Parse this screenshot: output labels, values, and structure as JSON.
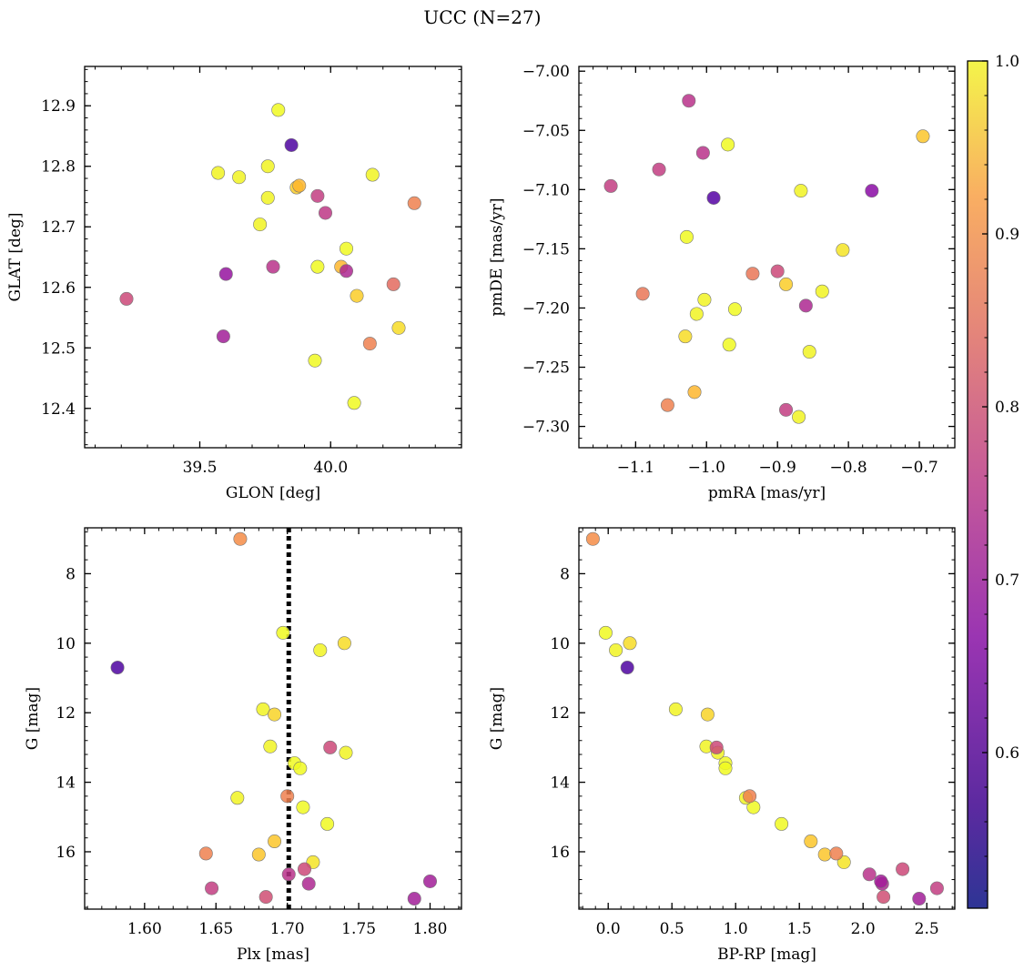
{
  "figure": {
    "title": "UCC (N=27)"
  },
  "colorbar": {
    "ticks": [
      1.0,
      0.9,
      0.8,
      0.7,
      0.6
    ],
    "tick_labels": [
      "1.0",
      "0.9",
      "0.8",
      "0.7",
      "0.6"
    ],
    "range": [
      0.51,
      1.0
    ],
    "colormap": "plasma"
  },
  "chart_data": [
    {
      "type": "scatter",
      "xlabel": "GLON [deg]",
      "ylabel": "GLAT [deg]",
      "xlim": [
        39.06,
        40.5
      ],
      "ylim": [
        12.335,
        12.965
      ],
      "xticks": [
        39.5,
        40.0
      ],
      "xtick_labels": [
        "39.5",
        "40.0"
      ],
      "yticks": [
        12.4,
        12.5,
        12.6,
        12.7,
        12.8,
        12.9
      ],
      "ytick_labels": [
        "12.4",
        "12.5",
        "12.6",
        "12.7",
        "12.8",
        "12.9"
      ],
      "points": [
        {
          "x": 39.22,
          "y": 12.581,
          "c": 0.72
        },
        {
          "x": 39.8,
          "y": 12.893,
          "c": 0.99
        },
        {
          "x": 39.85,
          "y": 12.835,
          "c": 0.52
        },
        {
          "x": 39.57,
          "y": 12.789,
          "c": 0.98
        },
        {
          "x": 39.65,
          "y": 12.782,
          "c": 0.98
        },
        {
          "x": 39.76,
          "y": 12.8,
          "c": 0.98
        },
        {
          "x": 39.88,
          "y": 12.768,
          "c": 0.9
        },
        {
          "x": 39.87,
          "y": 12.765,
          "c": 0.93
        },
        {
          "x": 39.95,
          "y": 12.751,
          "c": 0.7
        },
        {
          "x": 39.98,
          "y": 12.723,
          "c": 0.69
        },
        {
          "x": 40.16,
          "y": 12.786,
          "c": 0.98
        },
        {
          "x": 40.32,
          "y": 12.739,
          "c": 0.82
        },
        {
          "x": 39.76,
          "y": 12.748,
          "c": 0.98
        },
        {
          "x": 39.73,
          "y": 12.704,
          "c": 0.98
        },
        {
          "x": 40.06,
          "y": 12.664,
          "c": 0.99
        },
        {
          "x": 39.6,
          "y": 12.622,
          "c": 0.62
        },
        {
          "x": 39.78,
          "y": 12.634,
          "c": 0.68
        },
        {
          "x": 39.95,
          "y": 12.634,
          "c": 0.99
        },
        {
          "x": 40.04,
          "y": 12.634,
          "c": 0.9
        },
        {
          "x": 40.06,
          "y": 12.627,
          "c": 0.66
        },
        {
          "x": 40.1,
          "y": 12.586,
          "c": 0.93
        },
        {
          "x": 40.24,
          "y": 12.605,
          "c": 0.78
        },
        {
          "x": 39.59,
          "y": 12.519,
          "c": 0.64
        },
        {
          "x": 40.15,
          "y": 12.507,
          "c": 0.82
        },
        {
          "x": 40.26,
          "y": 12.533,
          "c": 0.95
        },
        {
          "x": 39.94,
          "y": 12.479,
          "c": 0.99
        },
        {
          "x": 40.09,
          "y": 12.409,
          "c": 0.99
        }
      ]
    },
    {
      "type": "scatter",
      "xlabel": "pmRA [mas/yr]",
      "ylabel": "pmDE [mas/yr]",
      "xlim": [
        -1.18,
        -0.65
      ],
      "ylim": [
        -7.318,
        -6.996
      ],
      "xticks": [
        -1.1,
        -1.0,
        -0.9,
        -0.8,
        -0.7
      ],
      "xtick_labels": [
        "−1.1",
        "−1.0",
        "−0.9",
        "−0.8",
        "−0.7"
      ],
      "yticks": [
        -7.3,
        -7.25,
        -7.2,
        -7.15,
        -7.1,
        -7.05,
        -7.0
      ],
      "ytick_labels": [
        "−7.30",
        "−7.25",
        "−7.20",
        "−7.15",
        "−7.10",
        "−7.05",
        "−7.00"
      ],
      "points": [
        {
          "x": -1.025,
          "y": -7.025,
          "c": 0.68
        },
        {
          "x": -0.695,
          "y": -7.055,
          "c": 0.92
        },
        {
          "x": -1.005,
          "y": -7.069,
          "c": 0.68
        },
        {
          "x": -0.97,
          "y": -7.062,
          "c": 0.99
        },
        {
          "x": -1.067,
          "y": -7.083,
          "c": 0.7
        },
        {
          "x": -1.135,
          "y": -7.097,
          "c": 0.7
        },
        {
          "x": -0.99,
          "y": -7.107,
          "c": 0.53
        },
        {
          "x": -0.867,
          "y": -7.101,
          "c": 0.98
        },
        {
          "x": -0.767,
          "y": -7.101,
          "c": 0.6
        },
        {
          "x": -1.028,
          "y": -7.14,
          "c": 0.99
        },
        {
          "x": -0.808,
          "y": -7.151,
          "c": 0.96
        },
        {
          "x": -0.9,
          "y": -7.169,
          "c": 0.72
        },
        {
          "x": -0.935,
          "y": -7.171,
          "c": 0.8
        },
        {
          "x": -0.888,
          "y": -7.18,
          "c": 0.93
        },
        {
          "x": -1.09,
          "y": -7.188,
          "c": 0.8
        },
        {
          "x": -0.837,
          "y": -7.186,
          "c": 0.98
        },
        {
          "x": -1.003,
          "y": -7.193,
          "c": 0.98
        },
        {
          "x": -0.86,
          "y": -7.198,
          "c": 0.66
        },
        {
          "x": -0.96,
          "y": -7.201,
          "c": 0.99
        },
        {
          "x": -1.014,
          "y": -7.205,
          "c": 0.98
        },
        {
          "x": -1.03,
          "y": -7.224,
          "c": 0.95
        },
        {
          "x": -0.968,
          "y": -7.231,
          "c": 0.99
        },
        {
          "x": -0.855,
          "y": -7.237,
          "c": 0.98
        },
        {
          "x": -1.017,
          "y": -7.271,
          "c": 0.9
        },
        {
          "x": -1.055,
          "y": -7.282,
          "c": 0.82
        },
        {
          "x": -0.888,
          "y": -7.286,
          "c": 0.7
        },
        {
          "x": -0.87,
          "y": -7.292,
          "c": 0.98
        }
      ]
    },
    {
      "type": "scatter",
      "xlabel": "Plx [mas]",
      "ylabel": "G [mag]",
      "xlim": [
        1.558,
        1.822
      ],
      "ylim": [
        17.65,
        6.68
      ],
      "xticks": [
        1.6,
        1.65,
        1.7,
        1.75,
        1.8
      ],
      "xtick_labels": [
        "1.60",
        "1.65",
        "1.70",
        "1.75",
        "1.80"
      ],
      "yticks": [
        8,
        10,
        12,
        14,
        16
      ],
      "ytick_labels": [
        "8",
        "10",
        "12",
        "14",
        "16"
      ],
      "vline": 1.701,
      "points": [
        {
          "x": 1.667,
          "y": 7.0,
          "c": 0.84
        },
        {
          "x": 1.697,
          "y": 9.7,
          "c": 0.99
        },
        {
          "x": 1.723,
          "y": 10.2,
          "c": 0.98
        },
        {
          "x": 1.74,
          "y": 10.0,
          "c": 0.95
        },
        {
          "x": 1.581,
          "y": 10.7,
          "c": 0.52
        },
        {
          "x": 1.683,
          "y": 11.9,
          "c": 0.98
        },
        {
          "x": 1.691,
          "y": 12.05,
          "c": 0.94
        },
        {
          "x": 1.688,
          "y": 12.97,
          "c": 0.98
        },
        {
          "x": 1.73,
          "y": 13.0,
          "c": 0.72
        },
        {
          "x": 1.741,
          "y": 13.15,
          "c": 0.98
        },
        {
          "x": 1.705,
          "y": 13.45,
          "c": 0.99
        },
        {
          "x": 1.709,
          "y": 13.6,
          "c": 0.99
        },
        {
          "x": 1.665,
          "y": 14.45,
          "c": 0.98
        },
        {
          "x": 1.7,
          "y": 14.4,
          "c": 0.82
        },
        {
          "x": 1.711,
          "y": 14.72,
          "c": 0.99
        },
        {
          "x": 1.728,
          "y": 15.2,
          "c": 0.99
        },
        {
          "x": 1.691,
          "y": 15.7,
          "c": 0.92
        },
        {
          "x": 1.643,
          "y": 16.05,
          "c": 0.82
        },
        {
          "x": 1.68,
          "y": 16.08,
          "c": 0.92
        },
        {
          "x": 1.718,
          "y": 16.3,
          "c": 0.96
        },
        {
          "x": 1.701,
          "y": 16.65,
          "c": 0.68
        },
        {
          "x": 1.712,
          "y": 16.5,
          "c": 0.72
        },
        {
          "x": 1.715,
          "y": 16.92,
          "c": 0.66
        },
        {
          "x": 1.8,
          "y": 16.85,
          "c": 0.64
        },
        {
          "x": 1.647,
          "y": 17.05,
          "c": 0.7
        },
        {
          "x": 1.685,
          "y": 17.3,
          "c": 0.73
        },
        {
          "x": 1.789,
          "y": 17.35,
          "c": 0.64
        }
      ]
    },
    {
      "type": "scatter",
      "xlabel": "BP-RP [mag]",
      "ylabel": "G [mag]",
      "xlim": [
        -0.23,
        2.72
      ],
      "ylim": [
        17.65,
        6.68
      ],
      "xticks": [
        0.0,
        0.5,
        1.0,
        1.5,
        2.0,
        2.5
      ],
      "xtick_labels": [
        "0.0",
        "0.5",
        "1.0",
        "1.5",
        "2.0",
        "2.5"
      ],
      "yticks": [
        8,
        10,
        12,
        14,
        16
      ],
      "ytick_labels": [
        "8",
        "10",
        "12",
        "14",
        "16"
      ],
      "points": [
        {
          "x": -0.12,
          "y": 7.0,
          "c": 0.84
        },
        {
          "x": -0.02,
          "y": 9.7,
          "c": 0.99
        },
        {
          "x": 0.06,
          "y": 10.2,
          "c": 0.98
        },
        {
          "x": 0.17,
          "y": 10.0,
          "c": 0.95
        },
        {
          "x": 0.15,
          "y": 10.7,
          "c": 0.52
        },
        {
          "x": 0.53,
          "y": 11.9,
          "c": 0.98
        },
        {
          "x": 0.78,
          "y": 12.05,
          "c": 0.94
        },
        {
          "x": 0.77,
          "y": 12.97,
          "c": 0.98
        },
        {
          "x": 0.85,
          "y": 13.0,
          "c": 0.72
        },
        {
          "x": 0.86,
          "y": 13.15,
          "c": 0.98
        },
        {
          "x": 0.92,
          "y": 13.45,
          "c": 0.99
        },
        {
          "x": 0.92,
          "y": 13.6,
          "c": 0.99
        },
        {
          "x": 1.08,
          "y": 14.45,
          "c": 0.98
        },
        {
          "x": 1.11,
          "y": 14.4,
          "c": 0.82
        },
        {
          "x": 1.14,
          "y": 14.72,
          "c": 0.99
        },
        {
          "x": 1.36,
          "y": 15.2,
          "c": 0.99
        },
        {
          "x": 1.59,
          "y": 15.7,
          "c": 0.92
        },
        {
          "x": 1.7,
          "y": 16.08,
          "c": 0.92
        },
        {
          "x": 1.79,
          "y": 16.05,
          "c": 0.82
        },
        {
          "x": 1.85,
          "y": 16.3,
          "c": 0.96
        },
        {
          "x": 2.05,
          "y": 16.65,
          "c": 0.68
        },
        {
          "x": 2.31,
          "y": 16.5,
          "c": 0.72
        },
        {
          "x": 2.14,
          "y": 16.85,
          "c": 0.64
        },
        {
          "x": 2.15,
          "y": 16.92,
          "c": 0.66
        },
        {
          "x": 2.58,
          "y": 17.05,
          "c": 0.7
        },
        {
          "x": 2.16,
          "y": 17.3,
          "c": 0.73
        },
        {
          "x": 2.44,
          "y": 17.35,
          "c": 0.64
        }
      ]
    }
  ]
}
